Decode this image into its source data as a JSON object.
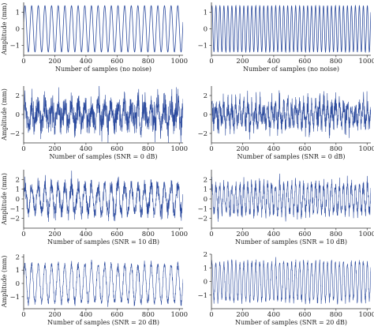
{
  "colors": {
    "line": "#2c4b9e",
    "axis": "#333333",
    "background": "#ffffff"
  },
  "chart_data": [
    {
      "type": "line",
      "panel": "row1-left",
      "ylabel": "Amplitude (mm)",
      "xlabel": "Number of samples (no noise)",
      "xlim": [
        0,
        1024
      ],
      "ylim": [
        -1.6,
        1.6
      ],
      "xticks": [
        "0",
        "200",
        "400",
        "600",
        "800",
        "1000"
      ],
      "yticks": [
        "1",
        "0",
        "−1"
      ],
      "signal": {
        "amplitude": 1.4,
        "cycles": 24,
        "phase": 0.3,
        "noise_std": 0
      }
    },
    {
      "type": "line",
      "panel": "row1-right",
      "ylabel": "",
      "xlabel": "Number of samples (no noise)",
      "xlim": [
        0,
        1024
      ],
      "ylim": [
        -1.6,
        1.6
      ],
      "xticks": [
        "0",
        "200",
        "400",
        "600",
        "800",
        "1000"
      ],
      "yticks": [
        "1",
        "0",
        "−1"
      ],
      "signal": {
        "amplitude": 1.4,
        "cycles": 40,
        "phase": 0.8,
        "noise_std": 0
      }
    },
    {
      "type": "line",
      "panel": "row2-left",
      "ylabel": "Amplitude (mm)",
      "xlabel": "Number of samples (SNR = 0 dB)",
      "xlim": [
        0,
        1024
      ],
      "ylim": [
        -3,
        3
      ],
      "xticks": [
        "0",
        "200",
        "400",
        "600",
        "800",
        "1000"
      ],
      "yticks": [
        "2",
        "0",
        "−2"
      ],
      "signal": {
        "amplitude": 1.0,
        "cycles": 24,
        "phase": 0.3,
        "noise_std": 0.8
      }
    },
    {
      "type": "line",
      "panel": "row2-right",
      "ylabel": "",
      "xlabel": "Number of samples (SNR = 0 dB)",
      "xlim": [
        0,
        1024
      ],
      "ylim": [
        -3,
        3
      ],
      "xticks": [
        "0",
        "200",
        "400",
        "600",
        "800",
        "1000"
      ],
      "yticks": [
        "2",
        "0",
        "−2"
      ],
      "signal": {
        "amplitude": 1.0,
        "cycles": 40,
        "phase": 0.8,
        "noise_std": 0.7
      }
    },
    {
      "type": "line",
      "panel": "row3-left",
      "ylabel": "Amplitude (mm)",
      "xlabel": "Number of samples (SNR = 10 dB)",
      "xlim": [
        0,
        1024
      ],
      "ylim": [
        -3,
        3
      ],
      "xticks": [
        "0",
        "200",
        "400",
        "600",
        "800",
        "1000"
      ],
      "yticks": [
        "2",
        "1",
        "0",
        "−1",
        "−2"
      ],
      "signal": {
        "amplitude": 1.4,
        "cycles": 24,
        "phase": 0.3,
        "noise_std": 0.45
      }
    },
    {
      "type": "line",
      "panel": "row3-right",
      "ylabel": "",
      "xlabel": "Number of samples (SNR = 10 dB)",
      "xlim": [
        0,
        1024
      ],
      "ylim": [
        -3,
        3
      ],
      "xticks": [
        "0",
        "200",
        "400",
        "600",
        "800",
        "1000"
      ],
      "yticks": [
        "2",
        "1",
        "0",
        "−1",
        "−2"
      ],
      "signal": {
        "amplitude": 1.4,
        "cycles": 40,
        "phase": 0.8,
        "noise_std": 0.4
      }
    },
    {
      "type": "line",
      "panel": "row4-left",
      "ylabel": "Amplitude (mm)",
      "xlabel": "Number of samples (SNR = 20 dB)",
      "xlim": [
        0,
        1024
      ],
      "ylim": [
        -1.9,
        2.2
      ],
      "xticks": [
        "0",
        "200",
        "400",
        "600",
        "800",
        "1000"
      ],
      "yticks": [
        "2",
        "1",
        "0",
        "−1"
      ],
      "signal": {
        "amplitude": 1.4,
        "cycles": 24,
        "phase": 0.3,
        "noise_std": 0.15
      }
    },
    {
      "type": "line",
      "panel": "row4-right",
      "ylabel": "",
      "xlabel": "Number of samples (SNR = 20 dB)",
      "xlim": [
        0,
        1024
      ],
      "ylim": [
        -2,
        2
      ],
      "xticks": [
        "0",
        "200",
        "400",
        "600",
        "800",
        "1000"
      ],
      "yticks": [
        "2",
        "1",
        "0",
        "−1"
      ],
      "signal": {
        "amplitude": 1.4,
        "cycles": 40,
        "phase": 0.8,
        "noise_std": 0.15
      }
    }
  ]
}
